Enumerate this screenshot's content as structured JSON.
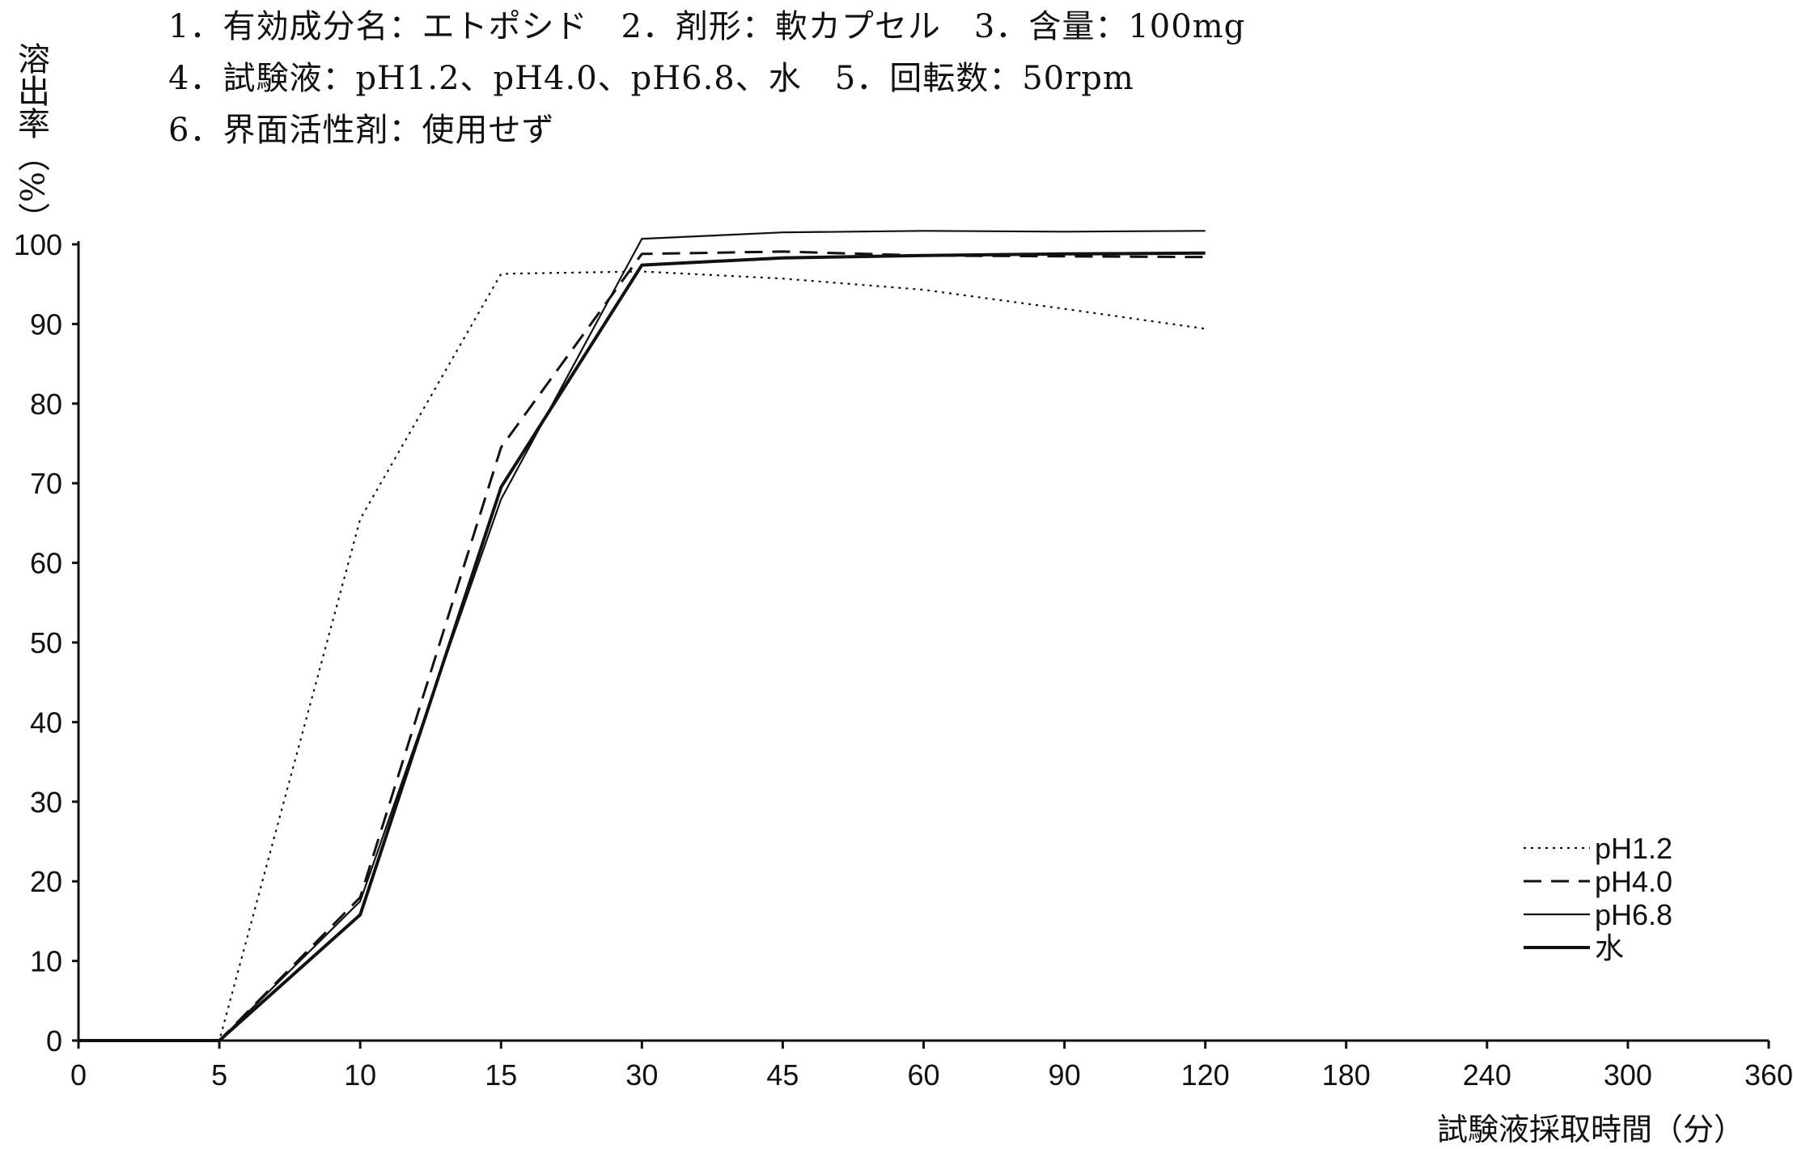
{
  "header": {
    "lines": [
      "1．有効成分名：エトポシド　2．剤形：軟カプセル　3．含量：100mg",
      "4．試験液：pH1.2、pH4.0、pH6.8、水　5．回転数：50rpm",
      "6．界面活性剤：使用せず"
    ]
  },
  "chart_data": {
    "type": "line",
    "title": "",
    "xlabel": "試験液採取時間（分）",
    "ylabel": "溶出率（%）",
    "x_scale": "categorical (equally spaced sampling times)",
    "categories": [
      "0",
      "5",
      "10",
      "15",
      "30",
      "45",
      "60",
      "90",
      "120",
      "180",
      "240",
      "300",
      "360"
    ],
    "ylim": [
      0,
      100
    ],
    "yticks": [
      0,
      10,
      20,
      30,
      40,
      50,
      60,
      70,
      80,
      90,
      100
    ],
    "grid": false,
    "legend_position": "bottom-right",
    "series": [
      {
        "name": "pH1.2",
        "style": "dotted",
        "x": [
          "0",
          "5",
          "10",
          "15",
          "30",
          "45",
          "60",
          "90",
          "120"
        ],
        "values": [
          0,
          0,
          65.5,
          96.3,
          96.6,
          95.7,
          94.3,
          91.9,
          89.4
        ]
      },
      {
        "name": "pH4.0",
        "style": "dashed",
        "x": [
          "0",
          "5",
          "10",
          "15",
          "30",
          "45",
          "60",
          "90",
          "120"
        ],
        "values": [
          0,
          0,
          18.0,
          74.5,
          98.8,
          99.1,
          98.6,
          98.5,
          98.4
        ]
      },
      {
        "name": "pH6.8",
        "style": "solid-thin",
        "x": [
          "0",
          "5",
          "10",
          "15",
          "30",
          "45",
          "60",
          "90",
          "120"
        ],
        "values": [
          0,
          0,
          17.5,
          68.0,
          100.7,
          101.5,
          101.7,
          101.6,
          101.7
        ]
      },
      {
        "name": "水",
        "style": "solid-thick",
        "x": [
          "0",
          "5",
          "10",
          "15",
          "30",
          "45",
          "60",
          "90",
          "120"
        ],
        "values": [
          0,
          0,
          15.8,
          69.5,
          97.4,
          98.3,
          98.6,
          98.8,
          98.9
        ]
      }
    ]
  }
}
